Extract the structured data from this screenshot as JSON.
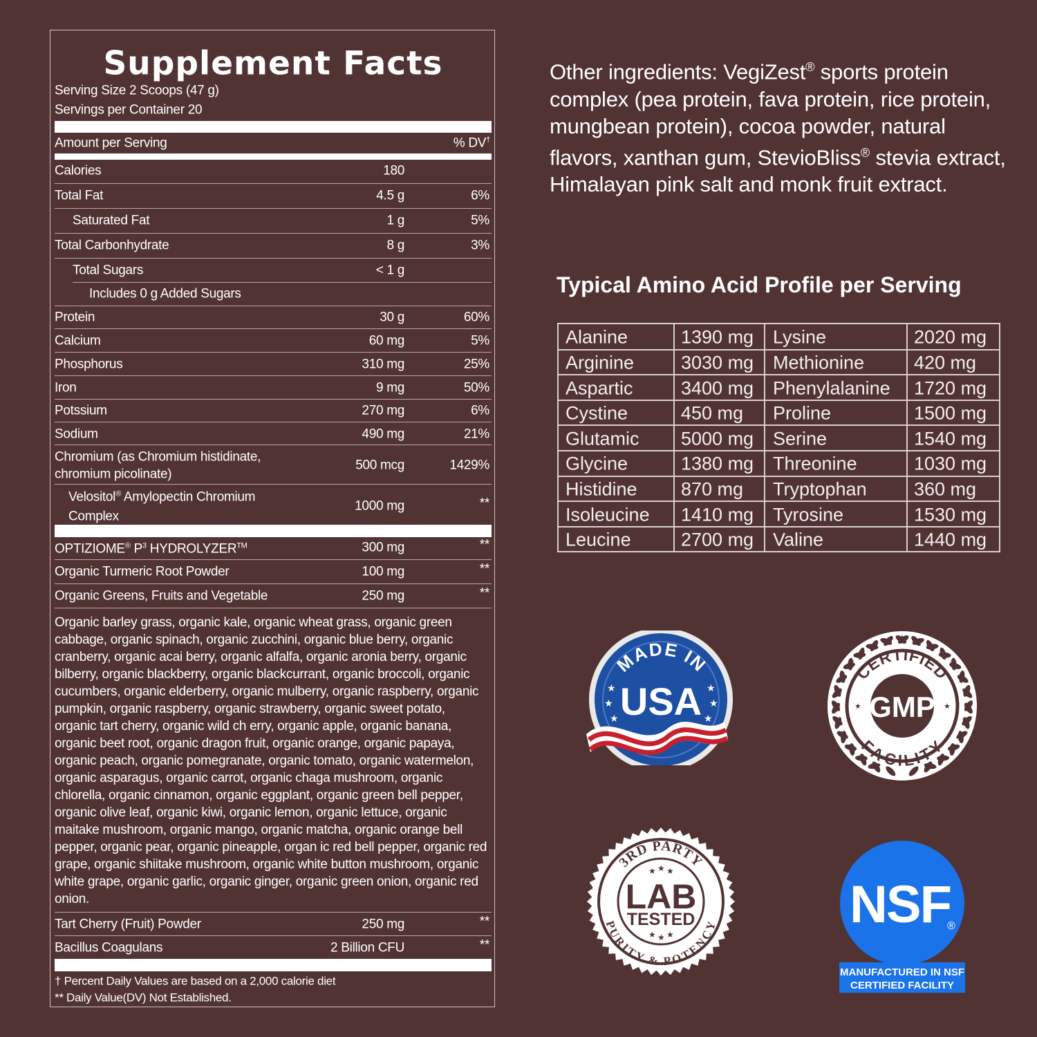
{
  "facts": {
    "title": "Supplement Facts",
    "serving_size": "Serving Size 2 Scoops (47 g)",
    "servings_per_container": "Servings per Container 20",
    "amount_per_serving": "Amount per Serving",
    "dv_header": "% DV",
    "dv_mark": "†",
    "rows": [
      {
        "name": "Calories",
        "amount": "180",
        "dv": ""
      },
      {
        "name": "Total Fat",
        "amount": "4.5 g",
        "dv": "6%"
      },
      {
        "name": "Saturated Fat",
        "amount": "1 g",
        "dv": "5%"
      },
      {
        "name": "Total Carbonhydrate",
        "amount": "8 g",
        "dv": "3%"
      },
      {
        "name": "Total Sugars",
        "amount": "< 1 g",
        "dv": ""
      },
      {
        "name": "Includes 0 g Added Sugars",
        "amount": "",
        "dv": ""
      },
      {
        "name": "Protein",
        "amount": "30 g",
        "dv": "60%"
      },
      {
        "name": "Calcium",
        "amount": "60 mg",
        "dv": "5%"
      },
      {
        "name": "Phosphorus",
        "amount": "310 mg",
        "dv": "25%"
      },
      {
        "name": "Iron",
        "amount": "9 mg",
        "dv": "50%"
      },
      {
        "name": "Potssium",
        "amount": "270 mg",
        "dv": "6%"
      },
      {
        "name": "Sodium",
        "amount": "490 mg",
        "dv": "21%"
      }
    ],
    "chromium": {
      "line1": "Chromium (as Chromium histidinate,",
      "line2": "chromium picolinate)",
      "amount": "500 mcg",
      "dv": "1429%"
    },
    "velositol": {
      "name": "Velositol",
      "reg": "®",
      "line1_rest": " Amylopectin Chromium",
      "line2": "Complex",
      "amount": "1000 mg",
      "dv": "**"
    },
    "optiziome": {
      "name": "OPTIZIOME",
      "reg": "®",
      "p": " P",
      "p_sup": "3",
      "rest": " HYDROLYZER",
      "tm": "TM",
      "amount": "300 mg",
      "dv": "**"
    },
    "turmeric": {
      "name": "Organic Turmeric Root Powder",
      "amount": "100 mg",
      "dv": "**"
    },
    "greens": {
      "name": "Organic Greens, Fruits and Vegetable",
      "amount": "250 mg",
      "dv": "**"
    },
    "greens_list": [
      "Organic barley grass, organic kale, organic wheat grass, organic green",
      "cabbage, organic spinach, organic zucchini, organic blue berry, organic",
      "cranberry, organic acai berry, organic alfalfa, organic aronia berry, organic",
      "bilberry, organic blackberry, organic blackcurrant, organic broccoli, organic",
      "cucumbers, organic elderberry, organic mulberry, organic raspberry, organic",
      "pumpkin, organic raspberry, organic strawberry, organic sweet potato,",
      "organic tart cherry, organic wild ch erry, organic apple, organic banana,",
      "organic beet root, organic dragon fruit, organic orange, organic papaya,",
      "organic peach, organic pomegranate, organic tomato, organic watermelon,",
      "organic asparagus, organic carrot, organic chaga mushroom, organic",
      "chlorella, organic cinnamon, organic eggplant, organic green bell pepper,",
      "organic olive leaf, organic kiwi, organic lemon, organic lettuce, organic",
      "maitake mushroom, organic mango, organic matcha, organic orange bell",
      "pepper, organic pear, organic pineapple, organ ic red bell pepper, organic red",
      "grape, organic shiitake mushroom, organic white button mushroom, organic",
      "white grape, organic garlic, organic ginger, organic green onion, organic red",
      "onion."
    ],
    "tart_cherry": {
      "name": "Tart Cherry (Fruit) Powder",
      "amount": "250 mg",
      "dv": "**"
    },
    "bacillus": {
      "name": "Bacillus Coagulans",
      "amount": "2 Billion CFU",
      "dv": "**"
    },
    "footnote1": "† Percent Daily Values are based on a 2,000 calorie diet",
    "footnote2": "** Daily Value(DV) Not Established."
  },
  "other_ingredients": {
    "part1": "Other ingredients: VegiZest",
    "reg1": "®",
    "part2": " sports protein complex (pea protein, fava protein, rice protein, mungbean protein), cocoa powder, natural flavors, xanthan gum, StevioBliss",
    "reg2": "®",
    "part3": " stevia extract, Himalayan pink salt and monk fruit extract."
  },
  "amino": {
    "title": "Typical Amino Acid Profile per Serving",
    "rows": [
      [
        "Alanine",
        "1390 mg",
        "Lysine",
        "2020 mg"
      ],
      [
        "Arginine",
        "3030 mg",
        "Methionine",
        "420 mg"
      ],
      [
        "Aspartic",
        "3400 mg",
        "Phenylalanine",
        "1720 mg"
      ],
      [
        "Cystine",
        "450 mg",
        "Proline",
        "1500 mg"
      ],
      [
        "Glutamic",
        "5000 mg",
        "Serine",
        "1540 mg"
      ],
      [
        "Glycine",
        "1380 mg",
        "Threonine",
        "1030 mg"
      ],
      [
        "Histidine",
        "870 mg",
        "Tryptophan",
        "360 mg"
      ],
      [
        "Isoleucine",
        "1410 mg",
        "Tyrosine",
        "1530 mg"
      ],
      [
        "Leucine",
        "2700 mg",
        "Valine",
        "1440 mg"
      ]
    ]
  },
  "badges": {
    "usa": {
      "top": "MADE IN",
      "main": "USA"
    },
    "gmp": {
      "top": "CERTIFIED",
      "main": "GMP",
      "bottom": "FACILITY"
    },
    "lab": {
      "top": "3RD PARTY",
      "main1": "LAB",
      "main2": "TESTED",
      "bottom": "PURITY & POTENCY"
    },
    "nsf": {
      "main": "NSF",
      "reg": "®",
      "line1": "MANUFACTURED IN NSF",
      "line2": "CERTIFIED FACILITY"
    }
  },
  "colors": {
    "background": "#523334",
    "nsf_blue": "#1a73e8",
    "usa_blue": "#1d4fa3",
    "usa_red": "#c8202f"
  }
}
